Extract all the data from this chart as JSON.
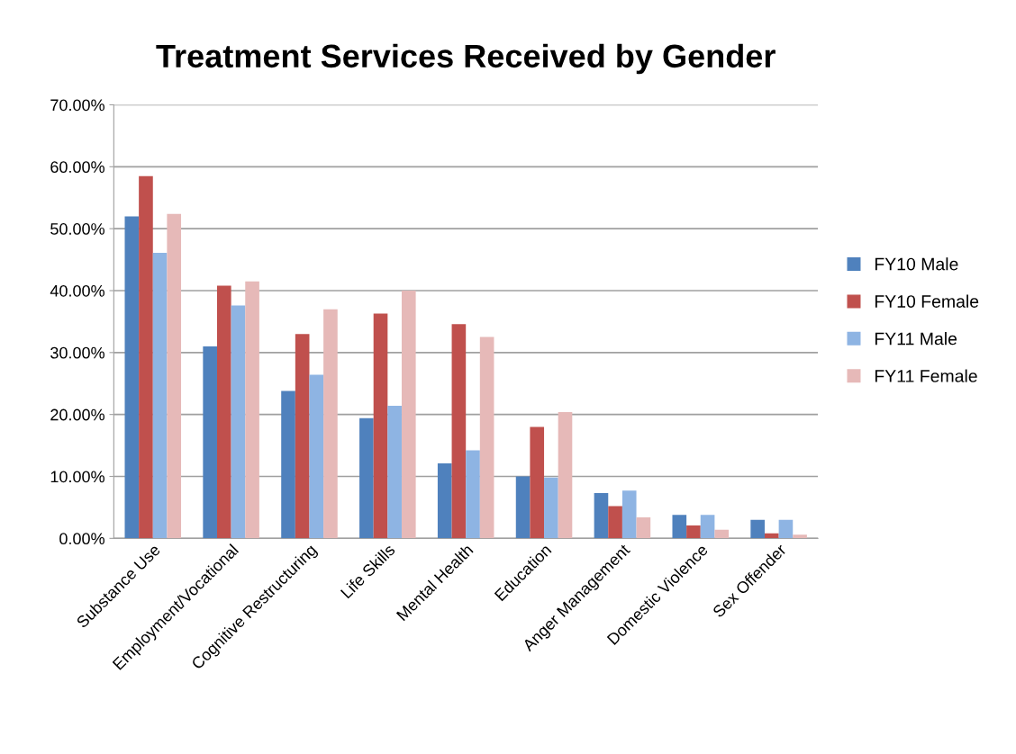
{
  "chart_data": {
    "type": "bar",
    "title": "Treatment Services Received by Gender",
    "categories": [
      "Substance Use",
      "Employment/Vocational",
      "Cognitive Restructuring",
      "Life Skills",
      "Mental Health",
      "Education",
      "Anger Management",
      "Domestic Violence",
      "Sex Offender"
    ],
    "series": [
      {
        "name": "FY10 Male",
        "color": "#4f81bd",
        "values": [
          52.0,
          31.0,
          23.8,
          19.4,
          12.1,
          10.0,
          7.3,
          3.8,
          3.0
        ]
      },
      {
        "name": "FY10 Female",
        "color": "#c0504d",
        "values": [
          58.5,
          40.8,
          33.0,
          36.3,
          34.6,
          18.0,
          5.2,
          2.1,
          0.8
        ]
      },
      {
        "name": "FY11 Male",
        "color": "#8eb4e3",
        "values": [
          46.1,
          37.6,
          26.4,
          21.4,
          14.2,
          9.8,
          7.7,
          3.8,
          3.0
        ]
      },
      {
        "name": "FY11 Female",
        "color": "#e6b9b8",
        "values": [
          52.4,
          41.5,
          37.0,
          40.0,
          32.5,
          20.4,
          3.4,
          1.4,
          0.6
        ]
      }
    ],
    "ylim": [
      0,
      70
    ],
    "yticks": [
      {
        "value": 0,
        "label": "0.00%"
      },
      {
        "value": 10,
        "label": "10.00%"
      },
      {
        "value": 20,
        "label": "20.00%"
      },
      {
        "value": 30,
        "label": "30.00%"
      },
      {
        "value": 40,
        "label": "40.00%"
      },
      {
        "value": 50,
        "label": "50.00%"
      },
      {
        "value": 60,
        "label": "60.00%"
      },
      {
        "value": 70,
        "label": "70.00%"
      }
    ],
    "grid": "y",
    "legend": "right"
  }
}
